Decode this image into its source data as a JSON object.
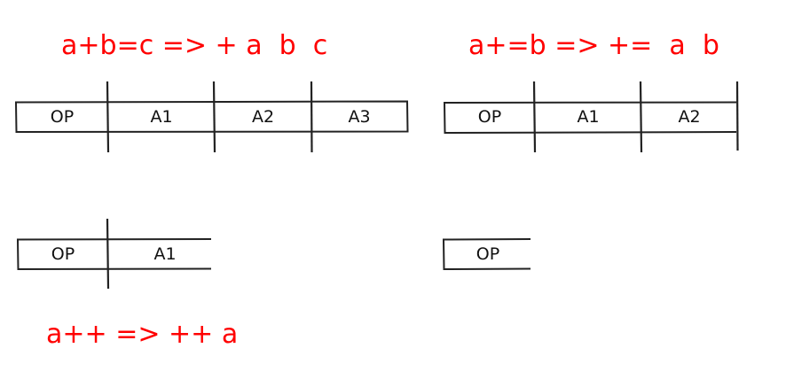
{
  "expressions": {
    "three_operand": "a+b=c => + a  b  c",
    "two_operand": "a+=b => +=  a  b",
    "one_operand": "a++ => ++ a"
  },
  "formats": {
    "three_operand": [
      "OP",
      "A1",
      "A2",
      "A3"
    ],
    "two_operand": [
      "OP",
      "A1",
      "A2"
    ],
    "one_operand": [
      "OP",
      "A1"
    ],
    "zero_operand": [
      "OP"
    ]
  },
  "colors": {
    "expression": "#ff0000",
    "line": "#222222",
    "text": "#111111"
  }
}
